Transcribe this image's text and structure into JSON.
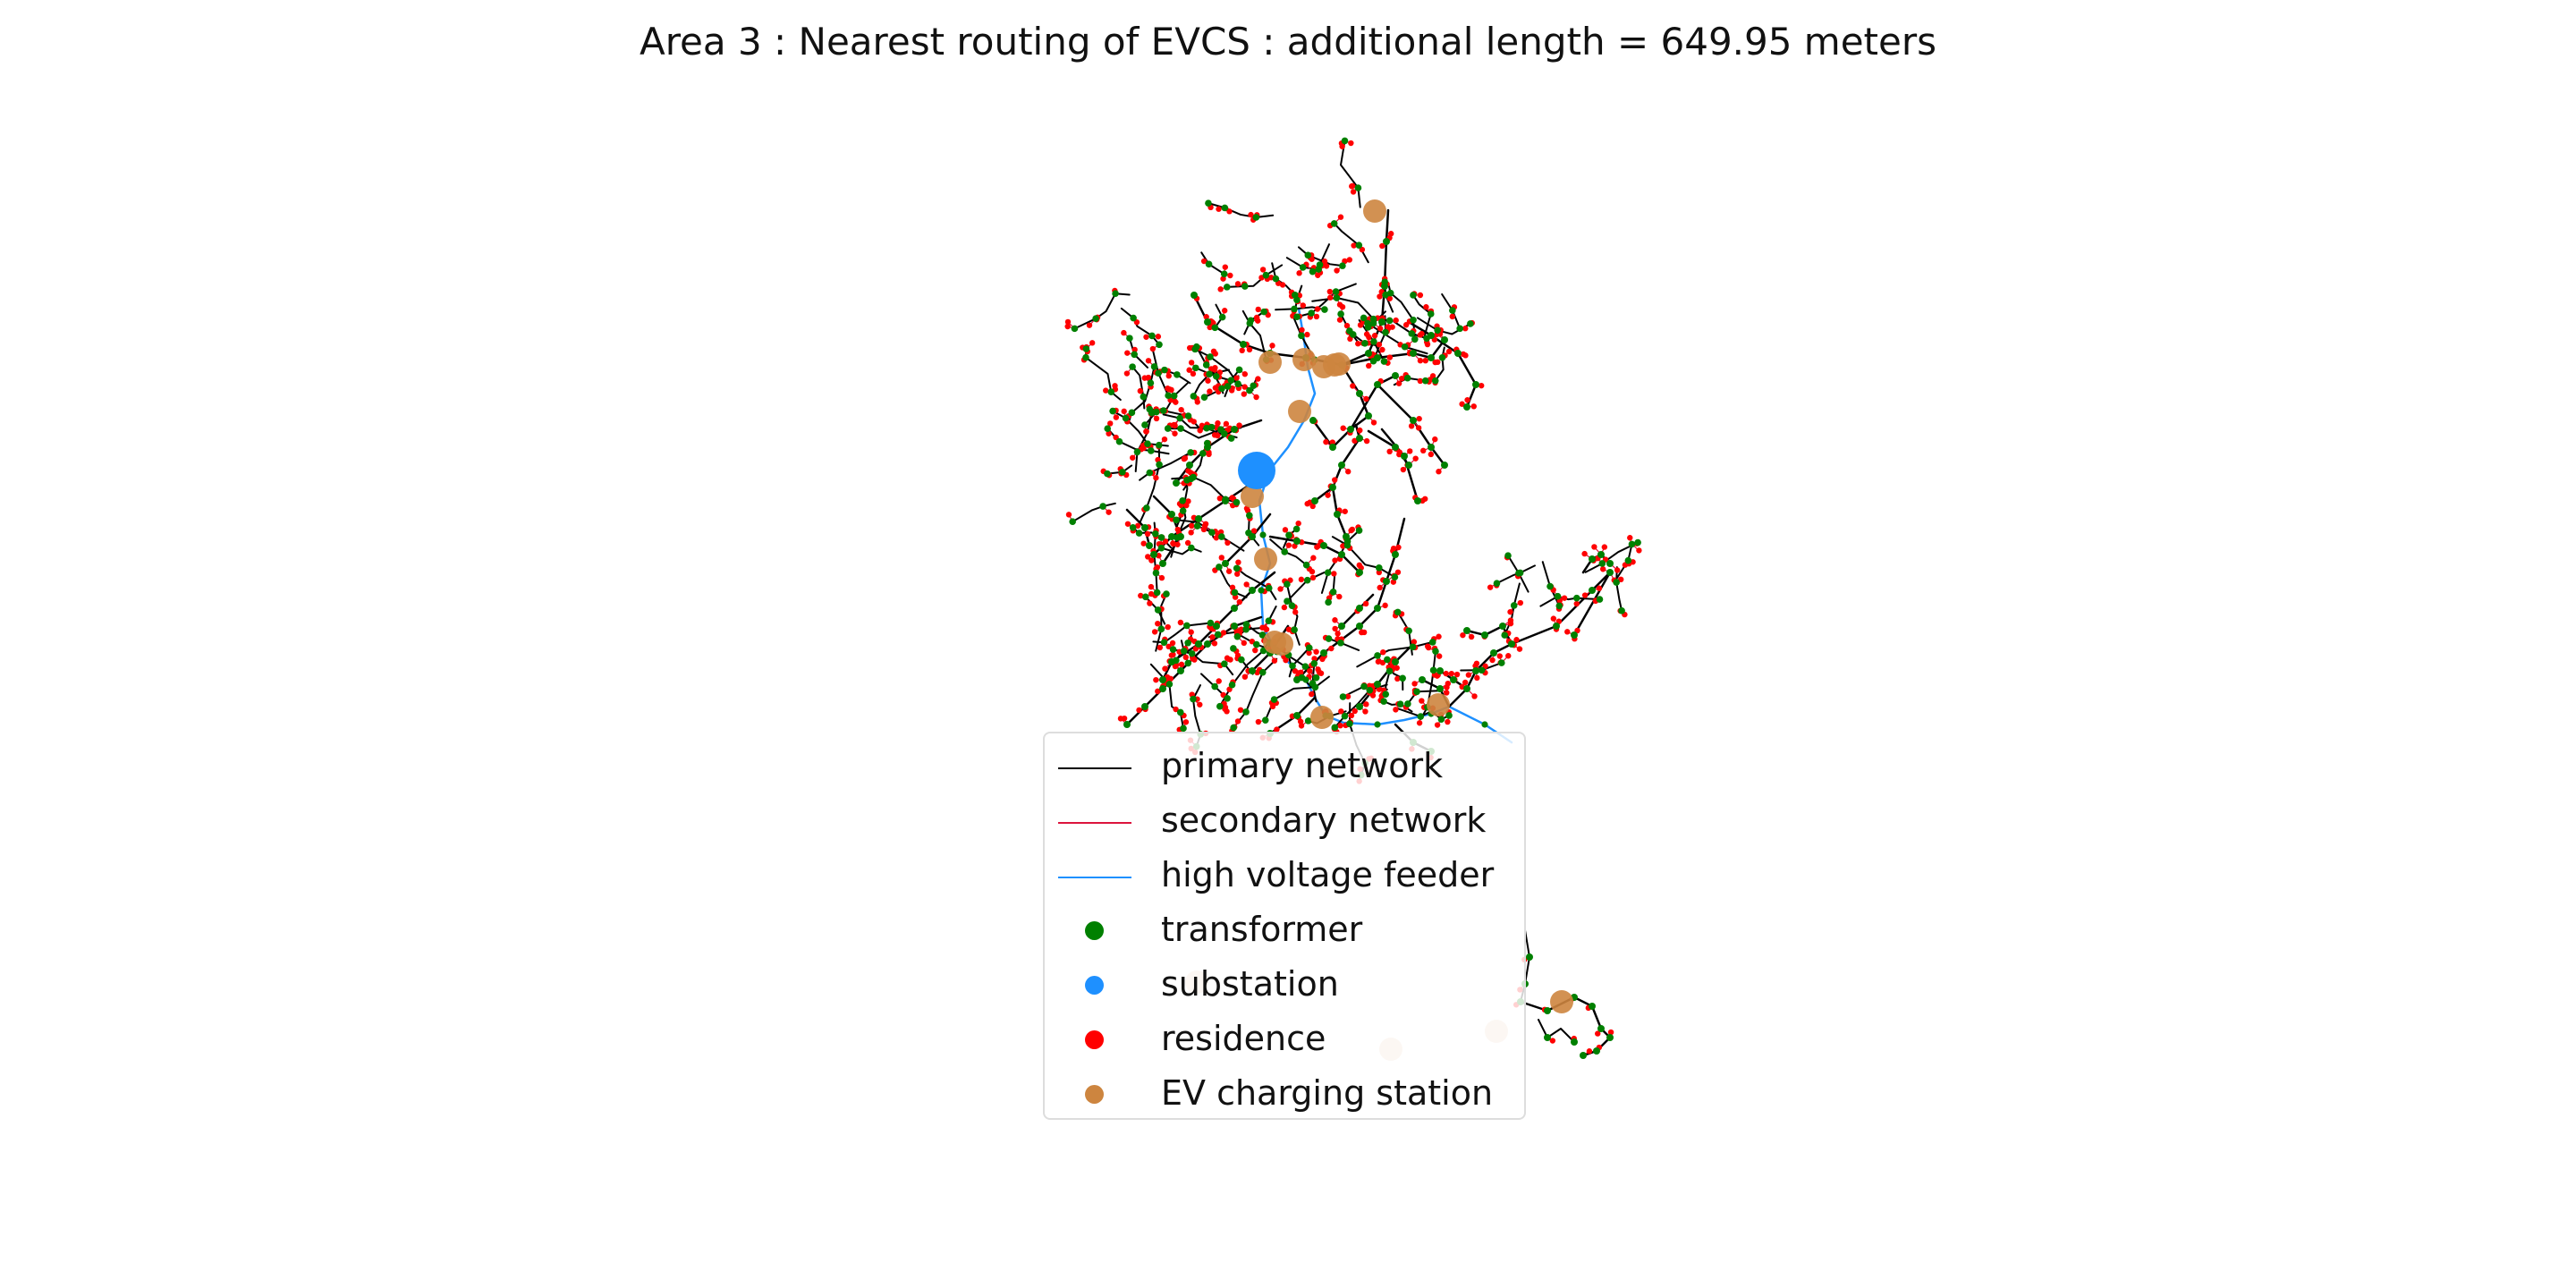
{
  "figure": {
    "title": "Area 3 : Nearest routing of EVCS : additional length =  649.95 meters"
  },
  "colors": {
    "primary_network": "#000000",
    "secondary_network": "#dc143c",
    "high_voltage_feeder": "#1e90ff",
    "transformer": "#008000",
    "substation": "#1e90ff",
    "residence": "#ff0000",
    "ev_charging_station": "#cd853f"
  },
  "legend": {
    "items": [
      {
        "label": "primary network",
        "kind": "line",
        "color": "#000000"
      },
      {
        "label": "secondary network",
        "kind": "line",
        "color": "#dc143c"
      },
      {
        "label": "high voltage feeder",
        "kind": "line",
        "color": "#1e90ff"
      },
      {
        "label": "transformer",
        "kind": "dot",
        "color": "#008000"
      },
      {
        "label": "substation",
        "kind": "dot",
        "color": "#1e90ff"
      },
      {
        "label": "residence",
        "kind": "dot",
        "color": "#ff0000"
      },
      {
        "label": "EV charging station",
        "kind": "dot",
        "color": "#cd853f"
      }
    ]
  }
}
